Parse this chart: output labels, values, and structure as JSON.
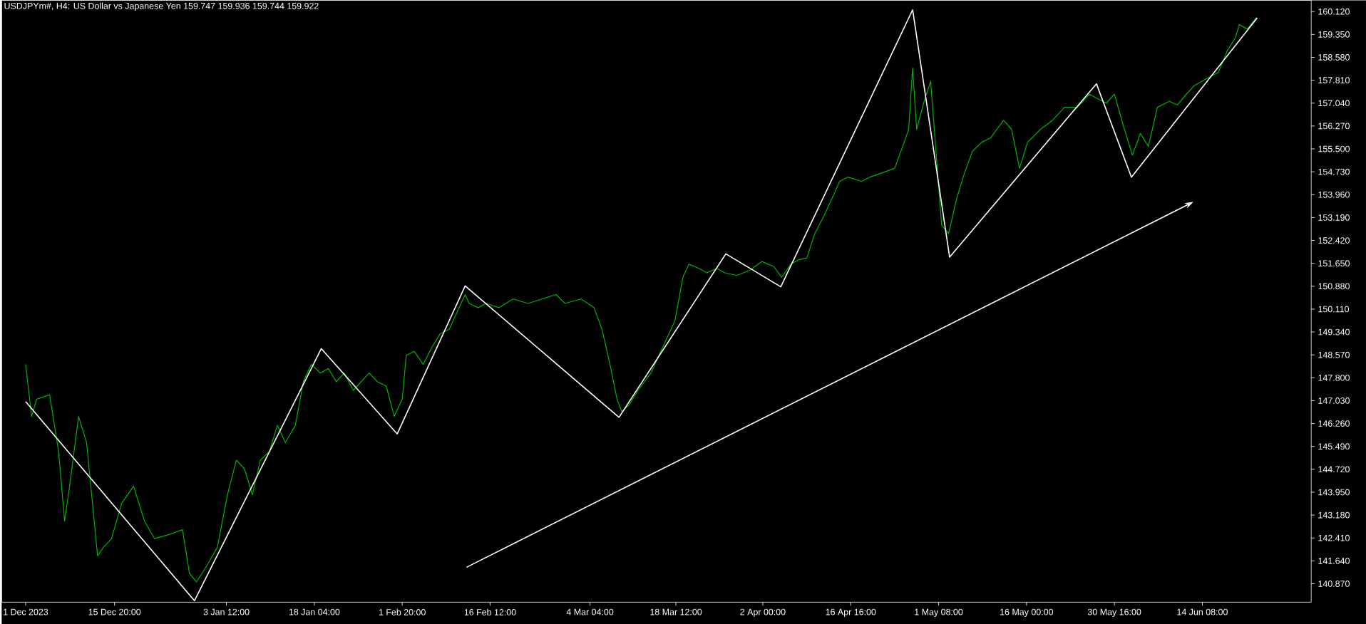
{
  "chart_data": {
    "type": "line",
    "title": "USDJPYm#, H4:  US Dollar vs Japanese Yen  159.747 159.936 159.744 159.922",
    "xlim": [
      "2023-11-27T00:00",
      "2024-07-02T12:00"
    ],
    "ylim": [
      140.25,
      160.5
    ],
    "xticks": [
      {
        "value": "2023-12-01T00:00",
        "label": "1 Dec 2023"
      },
      {
        "value": "2023-12-15T20:00",
        "label": "15 Dec 20:00"
      },
      {
        "value": "2024-01-03T12:00",
        "label": "3 Jan 12:00"
      },
      {
        "value": "2024-01-18T04:00",
        "label": "18 Jan 04:00"
      },
      {
        "value": "2024-02-01T20:00",
        "label": "1 Feb 20:00"
      },
      {
        "value": "2024-02-16T12:00",
        "label": "16 Feb 12:00"
      },
      {
        "value": "2024-03-04T04:00",
        "label": "4 Mar 04:00"
      },
      {
        "value": "2024-03-18T12:00",
        "label": "18 Mar 12:00"
      },
      {
        "value": "2024-04-02T00:00",
        "label": "2 Apr 00:00"
      },
      {
        "value": "2024-04-16T16:00",
        "label": "16 Apr 16:00"
      },
      {
        "value": "2024-05-01T08:00",
        "label": "1 May 08:00"
      },
      {
        "value": "2024-05-16T00:00",
        "label": "16 May 00:00"
      },
      {
        "value": "2024-05-30T16:00",
        "label": "30 May 16:00"
      },
      {
        "value": "2024-06-14T08:00",
        "label": "14 Jun 08:00"
      }
    ],
    "yticks": [
      {
        "value": 140.87,
        "label": "140.870"
      },
      {
        "value": 141.64,
        "label": "141.640"
      },
      {
        "value": 142.41,
        "label": "142.410"
      },
      {
        "value": 143.18,
        "label": "143.180"
      },
      {
        "value": 143.95,
        "label": "143.950"
      },
      {
        "value": 144.72,
        "label": "144.720"
      },
      {
        "value": 145.49,
        "label": "145.490"
      },
      {
        "value": 146.26,
        "label": "146.260"
      },
      {
        "value": 147.03,
        "label": "147.030"
      },
      {
        "value": 147.8,
        "label": "147.800"
      },
      {
        "value": 148.57,
        "label": "148.570"
      },
      {
        "value": 149.34,
        "label": "149.340"
      },
      {
        "value": 150.11,
        "label": "150.110"
      },
      {
        "value": 150.88,
        "label": "150.880"
      },
      {
        "value": 151.65,
        "label": "151.650"
      },
      {
        "value": 152.42,
        "label": "152.420"
      },
      {
        "value": 153.19,
        "label": "153.190"
      },
      {
        "value": 153.96,
        "label": "153.960"
      },
      {
        "value": 154.73,
        "label": "154.730"
      },
      {
        "value": 155.5,
        "label": "155.500"
      },
      {
        "value": 156.27,
        "label": "156.270"
      },
      {
        "value": 157.04,
        "label": "157.040"
      },
      {
        "value": 157.81,
        "label": "157.810"
      },
      {
        "value": 158.58,
        "label": "158.580"
      },
      {
        "value": 159.35,
        "label": "159.350"
      },
      {
        "value": 160.12,
        "label": "160.120"
      }
    ],
    "grid": false,
    "marker": "none",
    "line_style": "solid",
    "series": [
      {
        "color": "#00b400",
        "x": [
          "2023-12-01T00:00",
          "2023-12-02T00:00",
          "2023-12-02T20:00",
          "2023-12-05T00:00",
          "2023-12-06T12:00",
          "2023-12-07T12:00",
          "2023-12-08T08:00",
          "2023-12-09T20:00",
          "2023-12-11T04:00",
          "2023-12-13T00:00",
          "2023-12-14T00:00",
          "2023-12-15T08:00",
          "2023-12-17T00:00",
          "2023-12-19T00:00",
          "2023-12-20T20:00",
          "2023-12-22T12:00",
          "2023-12-25T04:00",
          "2023-12-27T04:00",
          "2023-12-28T08:00",
          "2023-12-29T12:00",
          "2023-12-31T08:00",
          "2024-01-02T00:00",
          "2024-01-03T16:00",
          "2024-01-05T04:00",
          "2024-01-06T12:00",
          "2024-01-07T20:00",
          "2024-01-09T04:00",
          "2024-01-10T16:00",
          "2024-01-12T00:00",
          "2024-01-13T08:00",
          "2024-01-15T00:00",
          "2024-01-16T08:00",
          "2024-01-17T16:00",
          "2024-01-19T04:00",
          "2024-01-20T12:00",
          "2024-01-21T20:00",
          "2024-01-23T04:00",
          "2024-01-24T16:00",
          "2024-01-26T00:00",
          "2024-01-27T08:00",
          "2024-01-28T16:00",
          "2024-01-30T04:00",
          "2024-01-31T12:00",
          "2024-02-01T20:00",
          "2024-02-02T12:00",
          "2024-02-03T20:00",
          "2024-02-05T08:00",
          "2024-02-06T20:00",
          "2024-02-08T04:00",
          "2024-02-09T16:00",
          "2024-02-11T00:00",
          "2024-02-12T08:00",
          "2024-02-13T00:00",
          "2024-02-14T12:00",
          "2024-02-15T20:00",
          "2024-02-18T00:00",
          "2024-02-20T08:00",
          "2024-02-22T20:00",
          "2024-02-25T04:00",
          "2024-02-27T12:00",
          "2024-02-29T00:00",
          "2024-03-02T16:00",
          "2024-03-04T20:00",
          "2024-03-06T04:00",
          "2024-03-07T12:00",
          "2024-03-08T16:00",
          "2024-03-09T12:00",
          "2024-03-10T20:00",
          "2024-03-12T04:00",
          "2024-03-14T08:00",
          "2024-03-15T16:00",
          "2024-03-17T00:00",
          "2024-03-18T08:00",
          "2024-03-19T16:00",
          "2024-03-20T16:00",
          "2024-03-22T08:00",
          "2024-03-23T16:00",
          "2024-03-25T08:00",
          "2024-03-26T16:00",
          "2024-03-28T16:00",
          "2024-03-30T20:00",
          "2024-04-01T20:00",
          "2024-04-03T20:00",
          "2024-04-05T04:00",
          "2024-04-06T16:00",
          "2024-04-08T00:00",
          "2024-04-09T08:00",
          "2024-04-10T16:00",
          "2024-04-12T04:00",
          "2024-04-13T12:00",
          "2024-04-14T20:00",
          "2024-04-16T04:00",
          "2024-04-18T12:00",
          "2024-04-19T20:00",
          "2024-04-22T00:00",
          "2024-04-24T00:00",
          "2024-04-25T08:00",
          "2024-04-26T08:00",
          "2024-04-27T00:00",
          "2024-04-27T16:00",
          "2024-04-28T20:00",
          "2024-04-30T00:00",
          "2024-04-30T20:00",
          "2024-05-01T20:00",
          "2024-05-03T00:00",
          "2024-05-04T08:00",
          "2024-05-05T16:00",
          "2024-05-07T00:00",
          "2024-05-08T12:00",
          "2024-05-10T00:00",
          "2024-05-12T04:00",
          "2024-05-13T12:00",
          "2024-05-14T20:00",
          "2024-05-16T04:00",
          "2024-05-18T08:00",
          "2024-05-20T08:00",
          "2024-05-22T08:00",
          "2024-05-24T12:00",
          "2024-05-26T12:00",
          "2024-05-27T20:00",
          "2024-05-29T08:00",
          "2024-05-30T16:00",
          "2024-06-01T08:00",
          "2024-06-02T16:00",
          "2024-06-04T00:00",
          "2024-06-05T08:00",
          "2024-06-06T20:00",
          "2024-06-08T20:00",
          "2024-06-10T04:00",
          "2024-06-11T16:00",
          "2024-06-13T00:00",
          "2024-06-15T00:00",
          "2024-06-17T00:00",
          "2024-06-18T12:00",
          "2024-06-19T20:00",
          "2024-06-20T12:00",
          "2024-06-21T20:00",
          "2024-06-23T08:00"
        ],
        "values": [
          148.25,
          146.5,
          147.08,
          147.23,
          145.32,
          142.98,
          144.15,
          146.5,
          145.62,
          141.81,
          142.1,
          142.39,
          143.57,
          144.15,
          142.98,
          142.39,
          142.54,
          142.69,
          141.22,
          140.93,
          141.51,
          142.1,
          143.86,
          145.03,
          144.74,
          143.86,
          145.03,
          145.32,
          146.2,
          145.62,
          146.2,
          147.67,
          148.25,
          147.96,
          148.11,
          147.67,
          147.96,
          147.37,
          147.67,
          147.96,
          147.67,
          147.52,
          146.5,
          147.08,
          148.55,
          148.69,
          148.25,
          148.84,
          149.28,
          149.43,
          150.01,
          150.6,
          150.3,
          150.16,
          150.3,
          150.16,
          150.45,
          150.3,
          150.45,
          150.6,
          150.3,
          150.45,
          150.16,
          149.43,
          148.25,
          147.08,
          146.64,
          146.93,
          147.37,
          147.96,
          148.55,
          149.13,
          149.72,
          151.18,
          151.62,
          151.48,
          151.33,
          151.48,
          151.33,
          151.24,
          151.42,
          151.71,
          151.54,
          151.18,
          151.62,
          151.77,
          151.83,
          152.65,
          153.23,
          153.82,
          154.41,
          154.55,
          154.41,
          154.55,
          154.7,
          154.85,
          155.58,
          156.16,
          158.22,
          156.16,
          157.04,
          157.78,
          155.58,
          152.94,
          152.65,
          153.82,
          154.7,
          155.43,
          155.72,
          155.87,
          156.46,
          156.16,
          154.85,
          155.72,
          156.16,
          156.46,
          156.9,
          156.9,
          157.34,
          157.19,
          157.04,
          157.34,
          156.16,
          155.29,
          156.02,
          155.58,
          156.9,
          157.1,
          156.98,
          157.34,
          157.63,
          157.86,
          158.07,
          158.8,
          159.24,
          159.68,
          159.53,
          159.92
        ]
      },
      {
        "color": "#ffffff",
        "x": [
          "2023-12-01T00:00",
          "2023-12-29T04:00",
          "2024-01-19T08:00",
          "2024-02-01T00:00",
          "2024-02-12T08:00",
          "2024-03-09T00:00",
          "2024-03-26T20:00",
          "2024-04-05T00:00",
          "2024-04-27T00:00",
          "2024-05-03T04:00",
          "2024-05-27T16:00",
          "2024-06-02T12:00",
          "2024-06-23T12:00"
        ],
        "values": [
          147.0,
          140.3,
          148.78,
          145.91,
          150.89,
          146.47,
          151.97,
          150.86,
          160.18,
          151.86,
          157.69,
          154.55,
          159.91
        ]
      }
    ]
  }
}
